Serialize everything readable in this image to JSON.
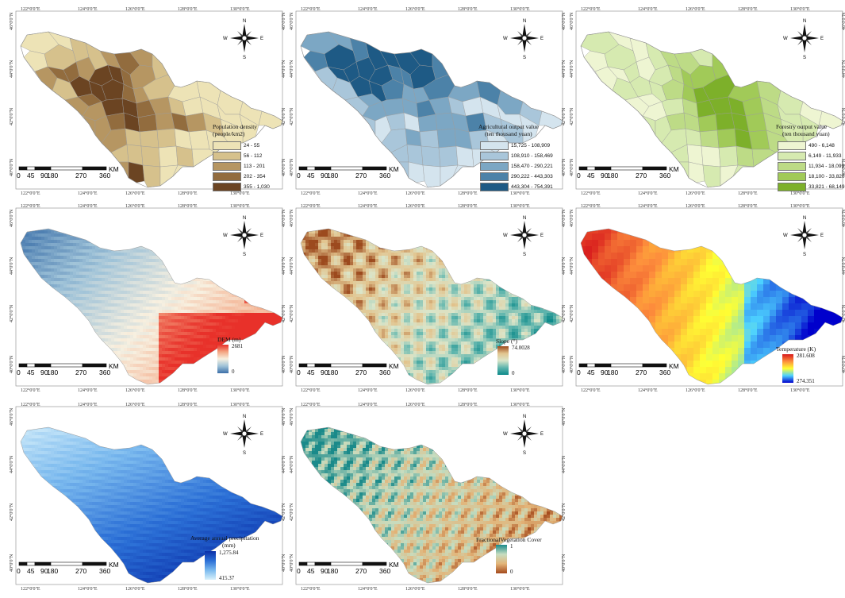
{
  "lon_labels": [
    "122°0'0\"E",
    "124°0'0\"E",
    "126°0'0\"E",
    "128°0'0\"E",
    "130°0'0\"E"
  ],
  "lat_labels": [
    "46°0'0\"N",
    "44°0'0\"N",
    "42°0'0\"N",
    "40°0'0\"N"
  ],
  "compass": {
    "n": "N",
    "s": "S",
    "e": "E",
    "w": "W"
  },
  "scale": {
    "ticks": [
      "0",
      "45",
      "90",
      "180",
      "270",
      "360"
    ],
    "unit": "KM"
  },
  "panels": [
    {
      "id": "population",
      "title": "Population density",
      "subtitle": "(people/km2)",
      "type": "class",
      "classes": [
        {
          "label": "24 - 55",
          "color": "#ede3b6"
        },
        {
          "label": "56 - 112",
          "color": "#d6c18c"
        },
        {
          "label": "113 - 201",
          "color": "#b69662"
        },
        {
          "label": "202 - 354",
          "color": "#926c3e"
        },
        {
          "label": "355 - 1,030",
          "color": "#6b4422"
        }
      ]
    },
    {
      "id": "agri",
      "title": "Agricultural output value",
      "subtitle": "(ten thousand yuan)",
      "type": "class",
      "classes": [
        {
          "label": "15,725 - 108,909",
          "color": "#d4e4ee"
        },
        {
          "label": "108,910 - 158,469",
          "color": "#a9c6da"
        },
        {
          "label": "158,470 - 290,221",
          "color": "#7ca7c4"
        },
        {
          "label": "290,222 - 443,303",
          "color": "#4c82a8"
        },
        {
          "label": "443,304 - 754,391",
          "color": "#1e5a85"
        }
      ]
    },
    {
      "id": "forestry",
      "title": "Forestry output value",
      "subtitle": "(ten thousand yuan)",
      "type": "class",
      "classes": [
        {
          "label": "490 - 6,148",
          "color": "#eef5d2"
        },
        {
          "label": "6,149 - 11,933",
          "color": "#d6eab0"
        },
        {
          "label": "11,934 - 18,099",
          "color": "#bddb86"
        },
        {
          "label": "18,100 - 33,820",
          "color": "#a1ca58"
        },
        {
          "label": "33,821 - 68,149",
          "color": "#7db02a"
        }
      ]
    },
    {
      "id": "dem",
      "title": "DEM (m)",
      "type": "continuous",
      "max": "2681",
      "min": "0",
      "colors": [
        "#e8312a",
        "#f4a582",
        "#f7f0e0",
        "#9ec2d8",
        "#3b6fa8"
      ]
    },
    {
      "id": "slope",
      "title": "Slope (°)",
      "type": "continuous",
      "max": "74.0028",
      "min": "0",
      "colors": [
        "#9c4a1e",
        "#e2c48e",
        "#dbe5c9",
        "#5fb5ad",
        "#0e8a8a"
      ]
    },
    {
      "id": "temp",
      "title": "Temperature (K)",
      "type": "continuous",
      "max": "281.608",
      "min": "274.351",
      "colors": [
        "#d7191c",
        "#fd8d3c",
        "#ffff33",
        "#4dd2ff",
        "#0000cc"
      ]
    },
    {
      "id": "precip",
      "title": "Average annual precipitation",
      "subtitle": "(mm)",
      "type": "continuous",
      "max": "1,275.84",
      "min": "415.37",
      "colors": [
        "#0a2fa8",
        "#2b6fd6",
        "#7ab9ee",
        "#d9f1fb"
      ]
    },
    {
      "id": "fvc",
      "title": "FractionalVegetation Cover",
      "type": "continuous",
      "max": "1",
      "min": "0",
      "colors": [
        "#1a8a8a",
        "#c7ddc0",
        "#e3b478",
        "#a44a1c"
      ]
    }
  ]
}
